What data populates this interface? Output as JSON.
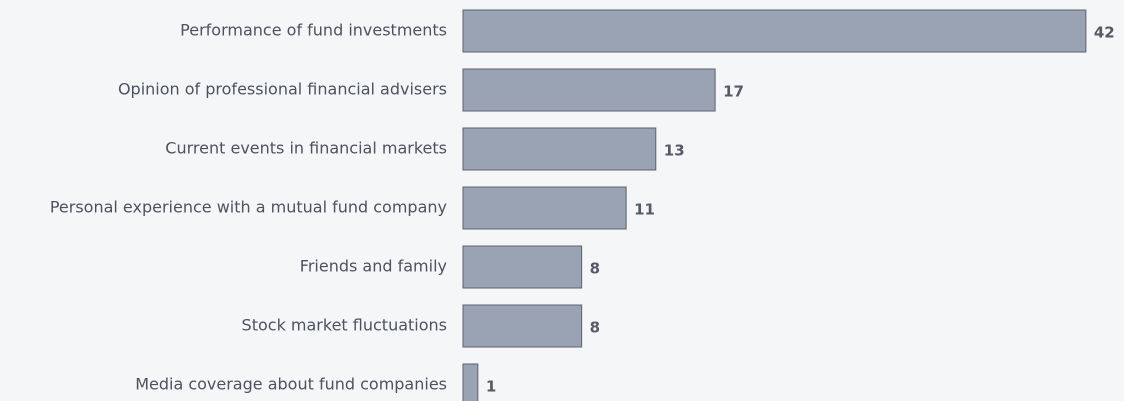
{
  "chart_data": {
    "type": "bar",
    "orientation": "horizontal",
    "categories": [
      "Performance of fund investments",
      "Opinion of professional financial advisers",
      "Current events in financial markets",
      "Personal experience with a mutual fund company",
      "Friends and family",
      "Stock market fluctuations",
      "Media coverage about fund companies"
    ],
    "values": [
      42,
      17,
      13,
      11,
      8,
      8,
      1
    ],
    "color": "#99a3b4"
  }
}
